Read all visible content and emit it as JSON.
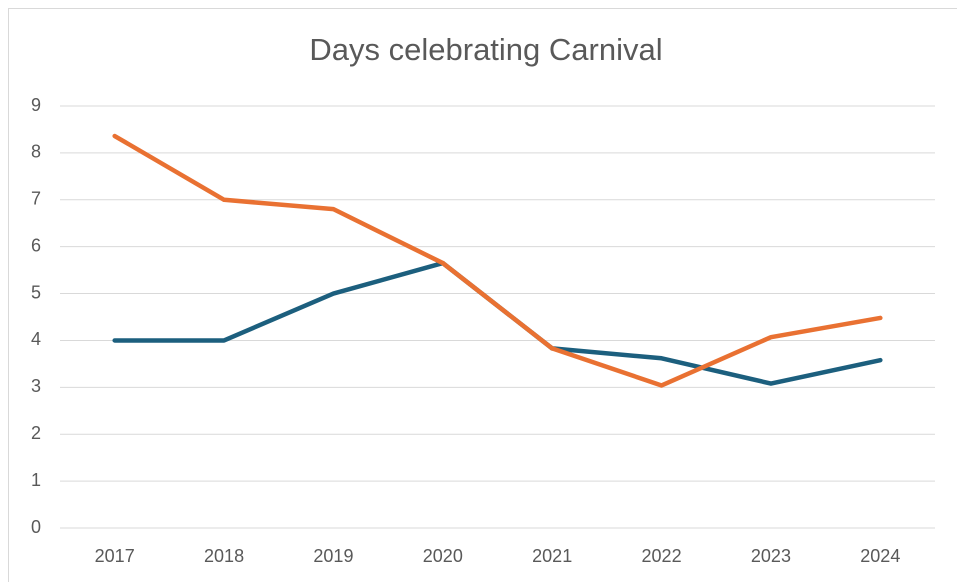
{
  "chart_data": {
    "type": "line",
    "title": "Days celebrating Carnival",
    "categories": [
      "2017",
      "2018",
      "2019",
      "2020",
      "2021",
      "2022",
      "2023",
      "2024"
    ],
    "series": [
      {
        "color": "#1c5f7e",
        "values": [
          4,
          4,
          5,
          5.65,
          3.83,
          3.62,
          3.08,
          3.58
        ]
      },
      {
        "color": "#e97132",
        "values": [
          8.36,
          7,
          6.8,
          5.65,
          3.83,
          3.04,
          4.07,
          4.48
        ]
      }
    ],
    "ylim": [
      0,
      9
    ],
    "yticks": [
      0,
      1,
      2,
      3,
      4,
      5,
      6,
      7,
      8,
      9
    ],
    "grid": true
  }
}
